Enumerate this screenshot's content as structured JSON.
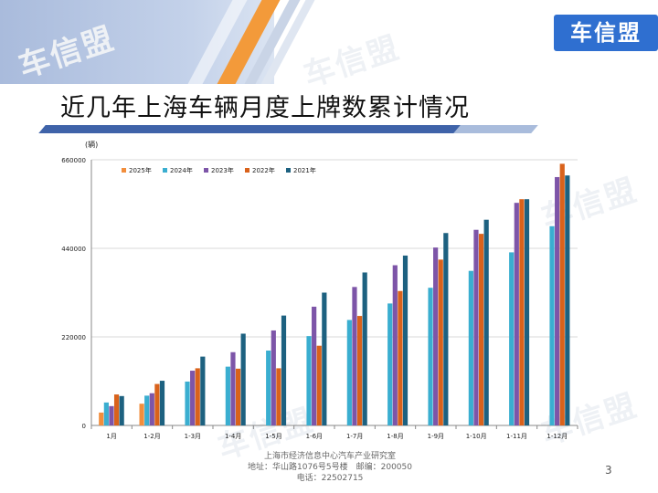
{
  "page": {
    "title": "近几年上海车辆月度上牌数累计情况",
    "logo_text": "车信盟",
    "watermark_text": "车信盟",
    "page_number": "3",
    "footer_lines": [
      "上海市经济信息中心汽车产业研究室",
      "地址：华山路1076号5号楼　邮编：200050",
      "电话：22502715"
    ]
  },
  "chart_data": {
    "type": "bar",
    "title": "",
    "xlabel": "",
    "ylabel": "(辆)",
    "ylim": [
      0,
      660000
    ],
    "yticks": [
      0,
      220000,
      440000,
      660000
    ],
    "ytick_labels": [
      "0",
      "220000",
      "440000",
      "660000"
    ],
    "grid": true,
    "legend": "top-left",
    "categories": [
      "1月",
      "1-2月",
      "1-3月",
      "1-4月",
      "1-5月",
      "1-6月",
      "1-7月",
      "1-8月",
      "1-9月",
      "1-10月",
      "1-11月",
      "1-12月"
    ],
    "series": [
      {
        "name": "2025年",
        "color": "#f28e3c",
        "values": [
          32000,
          54000,
          null,
          null,
          null,
          null,
          null,
          null,
          null,
          null,
          null,
          null
        ]
      },
      {
        "name": "2024年",
        "color": "#3aaed0",
        "values": [
          57000,
          74000,
          109000,
          146000,
          186000,
          222000,
          262000,
          303000,
          342000,
          384000,
          430000,
          495000
        ]
      },
      {
        "name": "2023年",
        "color": "#7d55a8",
        "values": [
          48000,
          80000,
          136000,
          182000,
          236000,
          295000,
          344000,
          398000,
          442000,
          486000,
          553000,
          617000
        ]
      },
      {
        "name": "2022年",
        "color": "#d9621b",
        "values": [
          77000,
          103000,
          142000,
          141000,
          142000,
          198000,
          272000,
          334000,
          412000,
          476000,
          562000,
          650000
        ]
      },
      {
        "name": "2021年",
        "color": "#1d6180",
        "values": [
          73000,
          111000,
          171000,
          228000,
          273000,
          330000,
          380000,
          422000,
          478000,
          511000,
          562000,
          621000
        ]
      }
    ]
  }
}
